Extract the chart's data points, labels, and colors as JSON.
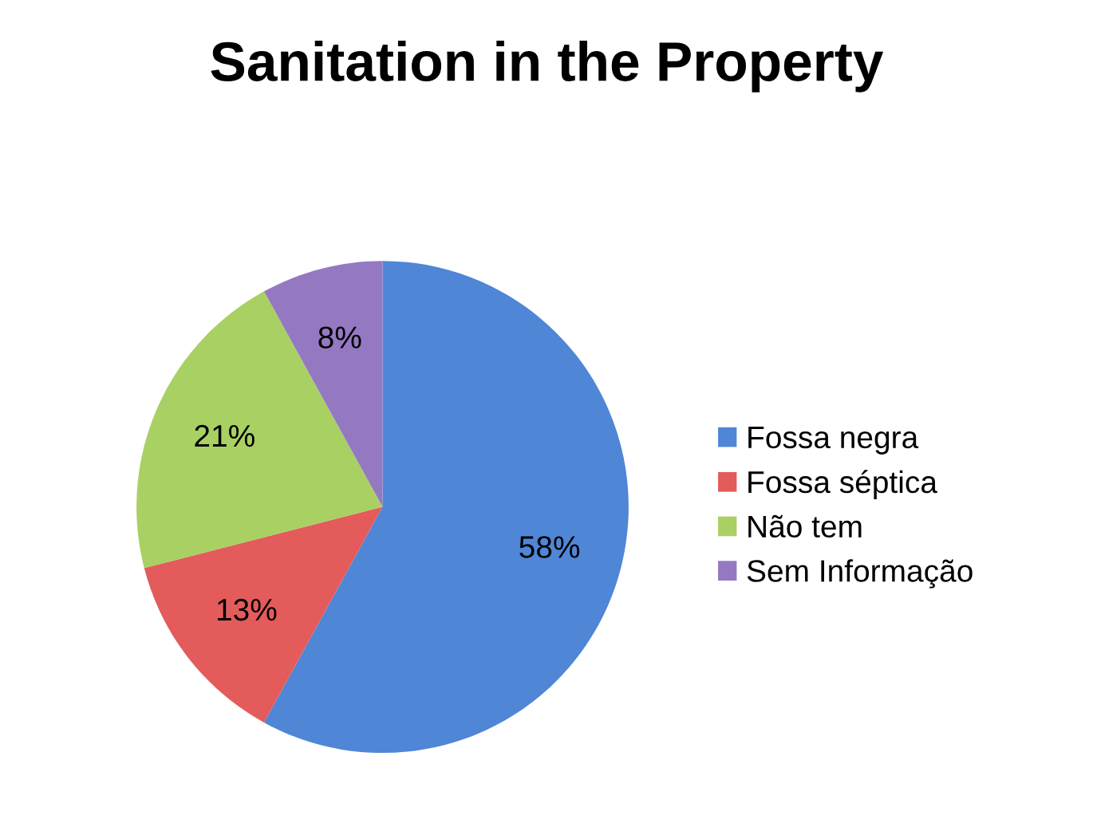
{
  "chart_data": {
    "type": "pie",
    "title": "Sanitation in the Property",
    "categories": [
      "Fossa negra",
      "Fossa séptica",
      "Não tem",
      "Sem Informação"
    ],
    "values": [
      58,
      13,
      21,
      8
    ],
    "value_labels": [
      "58%",
      "13%",
      "21%",
      "8%"
    ],
    "colors": [
      "#4f86d6",
      "#e35b5b",
      "#a9d063",
      "#9479c2"
    ],
    "legend": "right"
  }
}
